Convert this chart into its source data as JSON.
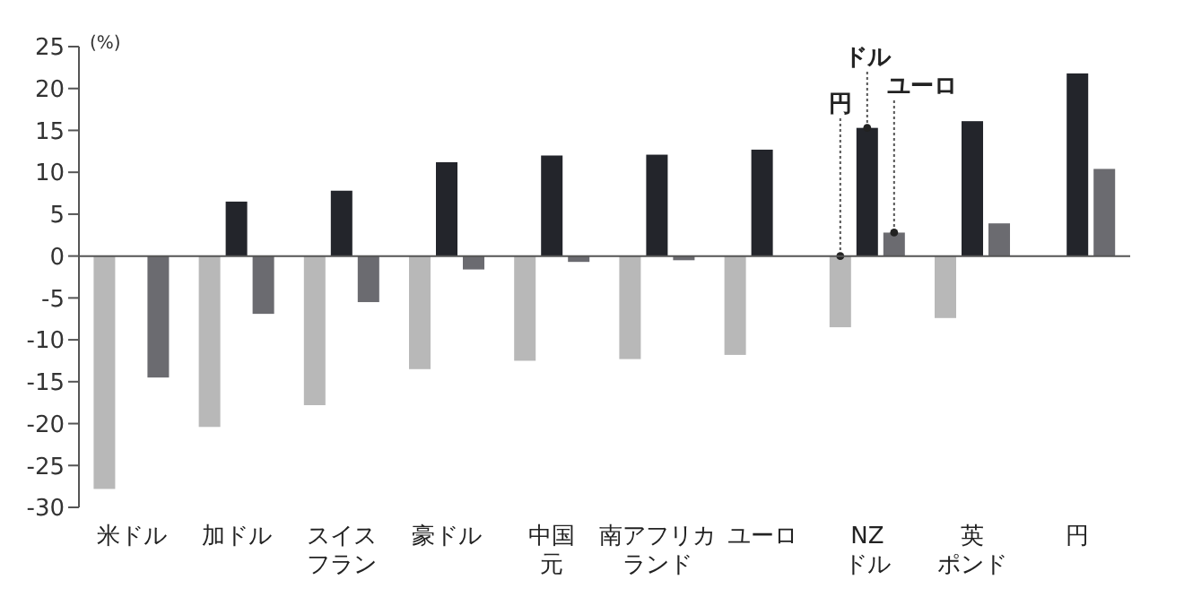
{
  "chart_data": {
    "type": "bar",
    "ylabel": "(%)",
    "categories": [
      "米ドル",
      "加ドル",
      "スイスフラン",
      "豪ドル",
      "中国元",
      "南アフリカランド",
      "ユーロ",
      "NZドル",
      "英ポンド",
      "円"
    ],
    "series": [
      {
        "name": "円",
        "color": "#b8b8b8",
        "values": [
          -27.8,
          -20.4,
          -17.8,
          -13.5,
          -12.5,
          -12.3,
          -11.8,
          -8.5,
          -7.4,
          null
        ]
      },
      {
        "name": "ドル",
        "color": "#23252b",
        "values": [
          null,
          6.5,
          7.8,
          11.2,
          12.0,
          12.1,
          12.7,
          15.3,
          16.1,
          21.8
        ]
      },
      {
        "name": "ユーロ",
        "color": "#6b6b70",
        "values": [
          -14.5,
          -6.9,
          -5.5,
          -1.6,
          -0.7,
          -0.5,
          null,
          2.8,
          3.9,
          10.4
        ]
      }
    ],
    "ylim": [
      -30,
      25
    ],
    "yticks": [
      -30,
      -25,
      -20,
      -15,
      -10,
      -5,
      0,
      5,
      10,
      15,
      20,
      25
    ],
    "ref_lines": [
      {
        "axis": "y",
        "value": 0,
        "color": "#555555"
      }
    ],
    "grid": false,
    "legend": false
  }
}
